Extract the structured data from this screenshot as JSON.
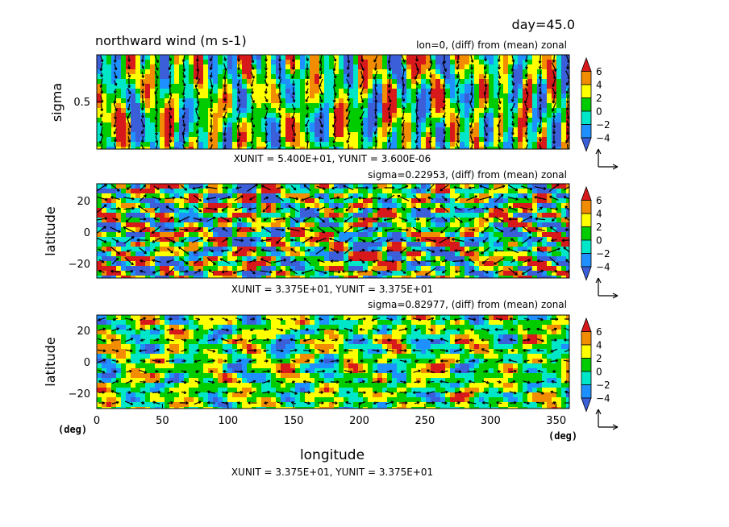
{
  "header": {
    "day": "day=45.0",
    "title": "northward wind (m s-1)"
  },
  "chart_data": [
    {
      "type": "heatmap",
      "id": "sigma-section",
      "subtitle": "lon=0, (diff) from (mean) zonal",
      "ylabel": "sigma",
      "yticks": [
        "0.5"
      ],
      "ytick_values": [
        0.5
      ],
      "ylim": [
        0,
        1
      ],
      "xlim": [
        0,
        360
      ],
      "unit_text": "XUNIT = 5.400E+01, YUNIT = 3.600E-06",
      "vectors": true
    },
    {
      "type": "heatmap",
      "id": "upper-level",
      "subtitle": "sigma=0.22953, (diff) from (mean) zonal",
      "ylabel": "latitude",
      "yticks": [
        "20",
        "0",
        "−20"
      ],
      "ytick_values": [
        20,
        0,
        -20
      ],
      "ylim": [
        -30,
        30
      ],
      "xlim": [
        0,
        360
      ],
      "unit_text": "XUNIT = 3.375E+01, YUNIT = 3.375E+01",
      "vectors": true
    },
    {
      "type": "heatmap",
      "id": "lower-level",
      "subtitle": "sigma=0.82977, (diff) from (mean) zonal",
      "ylabel": "latitude",
      "yticks": [
        "20",
        "0",
        "−20"
      ],
      "ytick_values": [
        20,
        0,
        -20
      ],
      "ylim": [
        -30,
        30
      ],
      "xlim": [
        0,
        360
      ],
      "xlabel": "longitude",
      "xticks": [
        "0",
        "50",
        "100",
        "150",
        "200",
        "250",
        "300",
        "350"
      ],
      "xtick_values": [
        0,
        50,
        100,
        150,
        200,
        250,
        300,
        350
      ],
      "x_unit_left": "(deg)",
      "x_unit_right": "(deg)",
      "unit_text": "XUNIT = 3.375E+01, YUNIT = 3.375E+01",
      "vectors": true
    }
  ],
  "colorbar": {
    "levels": [
      "6",
      "4",
      "2",
      "0",
      "−2",
      "−4"
    ],
    "level_values": [
      6,
      4,
      2,
      0,
      -2,
      -4
    ],
    "colors": [
      "#d7191c",
      "#f28c00",
      "#ffff00",
      "#00cc00",
      "#00e6c8",
      "#1e90ff",
      "#3a5fd9"
    ]
  }
}
